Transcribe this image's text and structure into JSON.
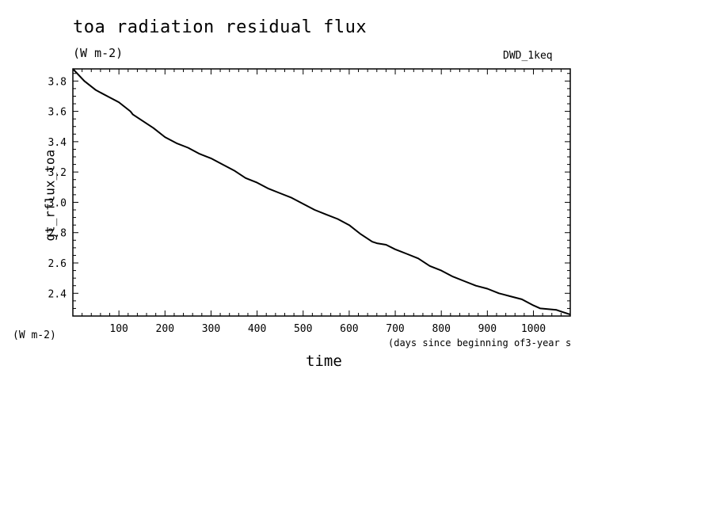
{
  "title": "toa radiation residual flux",
  "title_unit": "(W m-2)",
  "dataset": "DWD_1keq",
  "y_axis_unit": "(W m-2)",
  "x_axis_note": "(days since beginning of3-year s",
  "chart_data": {
    "type": "line",
    "title": "toa radiation residual flux",
    "xlabel": "time",
    "ylabel": "gt_rflux_toa",
    "xlim": [
      0,
      1080
    ],
    "ylim": [
      2.25,
      3.88
    ],
    "x_ticks": [
      100,
      200,
      300,
      400,
      500,
      600,
      700,
      800,
      900,
      1000
    ],
    "y_ticks": [
      2.4,
      2.6,
      2.8,
      3.0,
      3.2,
      3.4,
      3.6,
      3.8
    ],
    "grid": false,
    "series": [
      {
        "x": [
          0,
          25,
          50,
          75,
          100,
          125,
          130,
          150,
          175,
          200,
          225,
          250,
          275,
          300,
          325,
          350,
          375,
          400,
          425,
          450,
          475,
          500,
          525,
          550,
          575,
          600,
          625,
          650,
          660,
          680,
          700,
          725,
          750,
          775,
          800,
          825,
          850,
          875,
          900,
          925,
          950,
          975,
          1000,
          1015,
          1050,
          1060,
          1080
        ],
        "y": [
          3.88,
          3.8,
          3.74,
          3.7,
          3.66,
          3.6,
          3.58,
          3.54,
          3.49,
          3.43,
          3.39,
          3.36,
          3.32,
          3.29,
          3.25,
          3.21,
          3.16,
          3.13,
          3.09,
          3.06,
          3.03,
          2.99,
          2.95,
          2.92,
          2.89,
          2.85,
          2.79,
          2.74,
          2.73,
          2.72,
          2.69,
          2.66,
          2.63,
          2.58,
          2.55,
          2.51,
          2.48,
          2.45,
          2.43,
          2.4,
          2.38,
          2.36,
          2.32,
          2.3,
          2.29,
          2.28,
          2.26
        ]
      }
    ]
  }
}
